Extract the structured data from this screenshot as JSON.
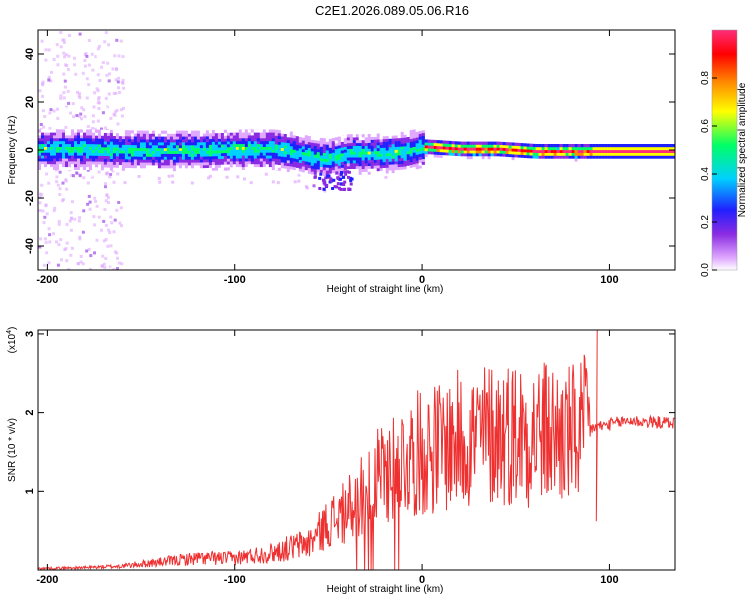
{
  "title": "C2E1.2026.089.05.06.R16",
  "chart_data": [
    {
      "type": "heatmap",
      "name": "spectrogram",
      "xlabel": "Height of straight line (km)",
      "ylabel": "Frequency (Hz)",
      "xlim": [
        -205,
        135
      ],
      "ylim": [
        -50,
        50
      ],
      "xticks": [
        -200,
        -100,
        0,
        100
      ],
      "yticks": [
        -40,
        -20,
        0,
        20,
        40
      ],
      "colorbar": {
        "label": "Normalized spectral amplitude",
        "range": [
          0,
          1
        ],
        "ticks": [
          0.0,
          0.2,
          0.4,
          0.6,
          0.8
        ],
        "colors": [
          "#ffffff",
          "#e0a8ff",
          "#8a2be2",
          "#2020ff",
          "#00d0ff",
          "#00ff66",
          "#ffff00",
          "#ff8c00",
          "#ff0000",
          "#ff2d7a"
        ]
      },
      "ridge": {
        "x": [
          -205,
          -180,
          -150,
          -120,
          -100,
          -80,
          -70,
          -60,
          -50,
          -40,
          -30,
          -20,
          -10,
          0,
          20,
          40,
          60,
          80,
          90,
          100,
          135
        ],
        "y": [
          1,
          1,
          0.5,
          0.5,
          1,
          1,
          0,
          -2,
          -3,
          -1,
          -1,
          -0.5,
          0,
          2,
          1,
          1,
          0,
          0,
          0,
          0,
          0
        ]
      },
      "ticks_text": [
        "-200",
        "-100",
        "0",
        "100",
        "-40",
        "-20",
        "0",
        "20",
        "40"
      ]
    },
    {
      "type": "line",
      "name": "snr",
      "xlabel": "Height of straight line (km)",
      "ylabel": "SNR (10 * v/v)",
      "yscale_note": "(x10",
      "yscale_exp": "4",
      "yscale_close": ")",
      "xlim": [
        -205,
        135
      ],
      "ylim": [
        0,
        3.05
      ],
      "xticks": [
        -200,
        -100,
        0,
        100
      ],
      "yticks": [
        1,
        2,
        3
      ],
      "color": "#ee3030",
      "envelope": {
        "x": [
          -205,
          -180,
          -160,
          -140,
          -120,
          -100,
          -80,
          -60,
          -50,
          -40,
          -30,
          -20,
          -10,
          0,
          20,
          40,
          60,
          80,
          90,
          100,
          110,
          120,
          135
        ],
        "y": [
          0.02,
          0.03,
          0.05,
          0.1,
          0.15,
          0.15,
          0.22,
          0.35,
          0.6,
          0.75,
          1.0,
          1.25,
          1.4,
          1.5,
          1.65,
          1.75,
          1.75,
          1.7,
          1.8,
          1.85,
          1.9,
          1.88,
          1.87
        ]
      },
      "spikes": [
        {
          "x": 93.5,
          "y": 3.05
        },
        {
          "x": 93.0,
          "y": 0.62
        }
      ]
    }
  ]
}
